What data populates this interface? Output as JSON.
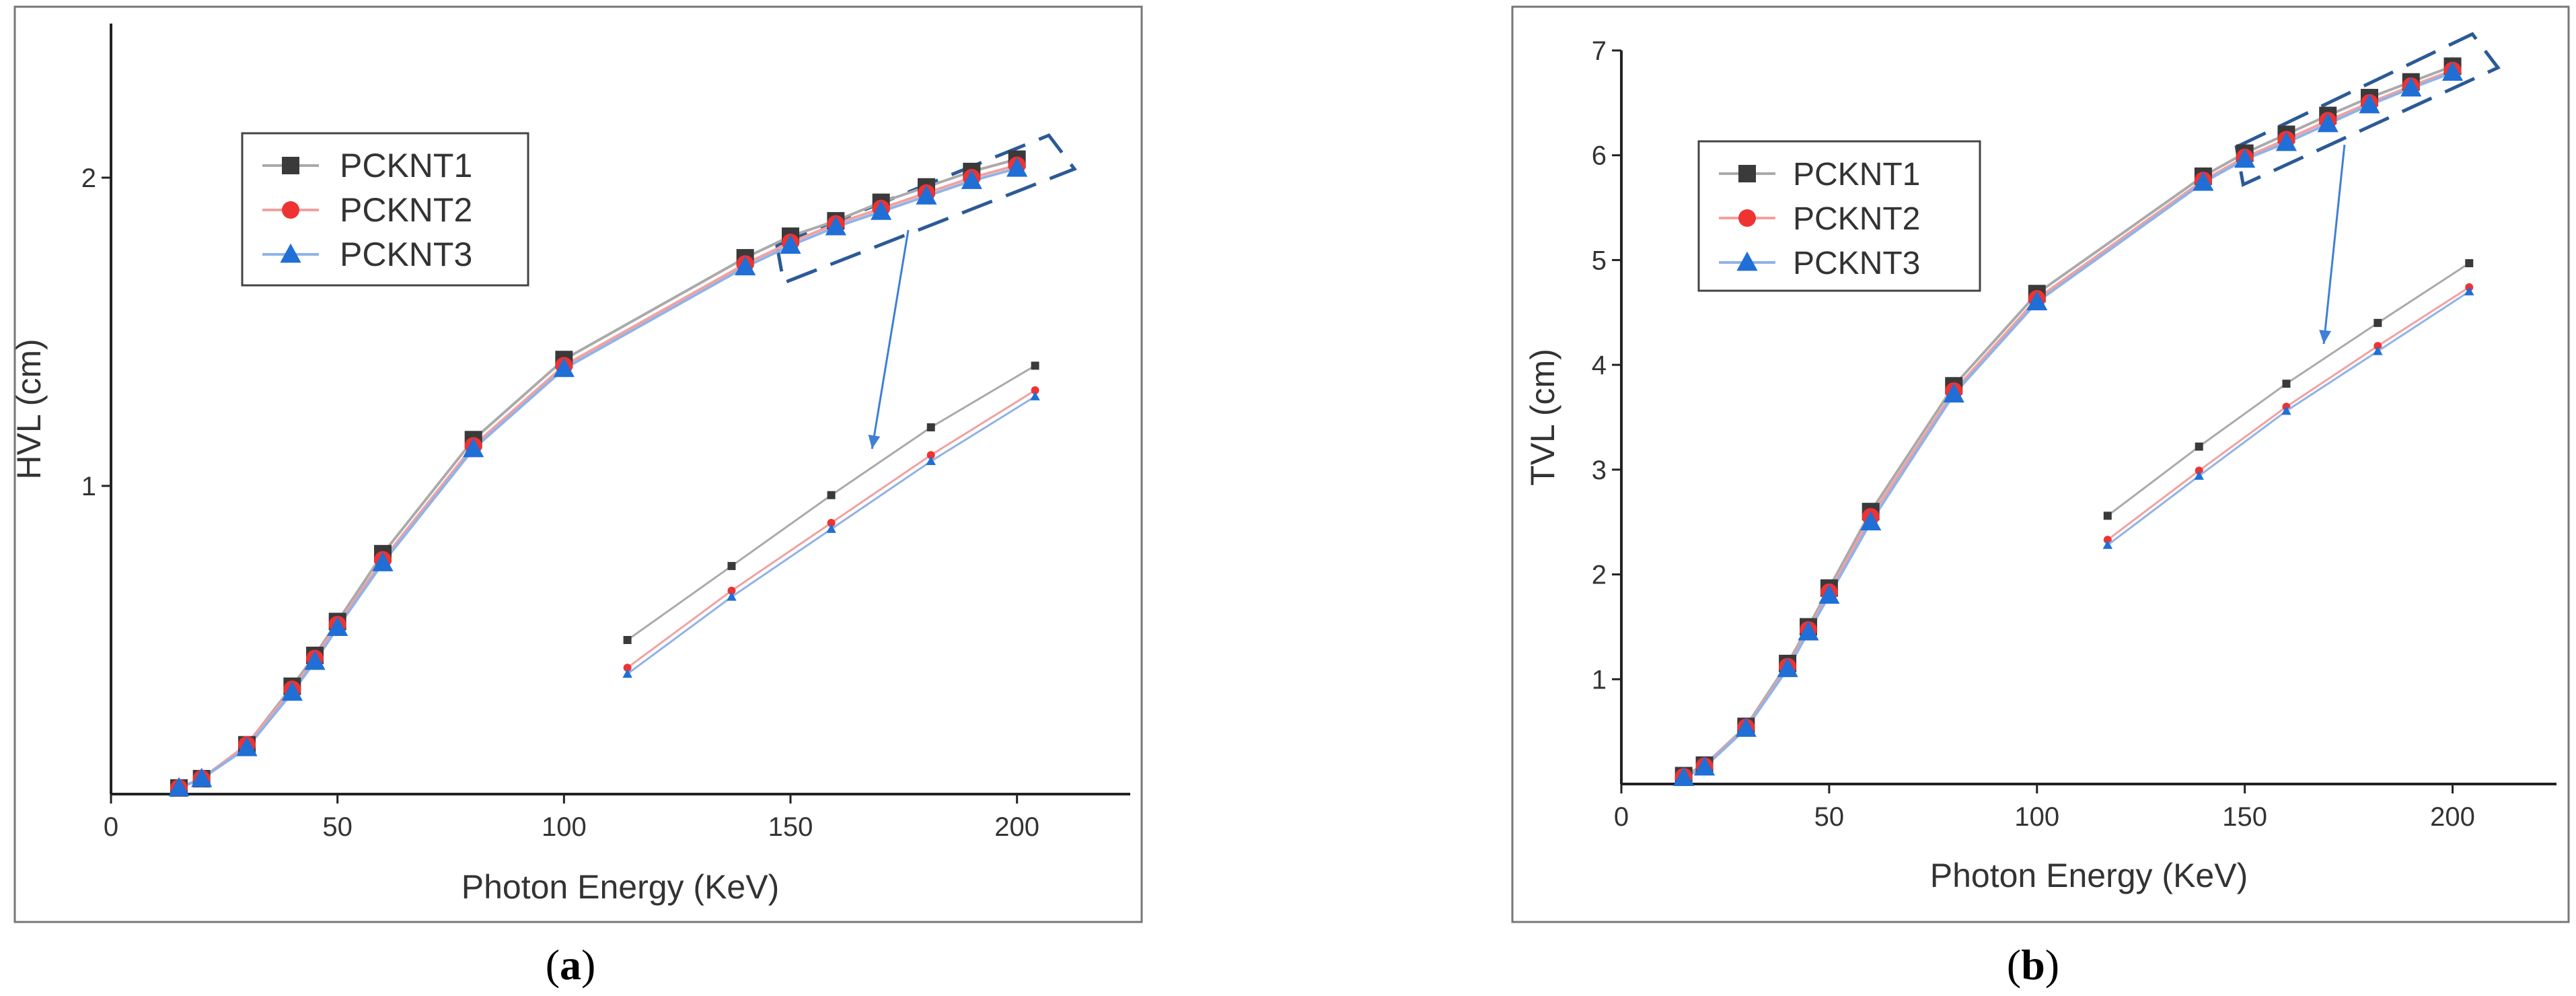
{
  "series_styles": [
    {
      "name": "PCKNT1",
      "line_color": "#aaaaaa",
      "marker_color": "#3a3a3a",
      "marker": "square"
    },
    {
      "name": "PCKNT2",
      "line_color": "#f2a0a0",
      "marker_color": "#ee3333",
      "marker": "circle"
    },
    {
      "name": "PCKNT3",
      "line_color": "#8fb3e8",
      "marker_color": "#1f6fd6",
      "marker": "triangle"
    }
  ],
  "chart_data": [
    {
      "id": "a",
      "type": "line",
      "caption_open": "(",
      "caption_letter": "a",
      "caption_close": ")",
      "xlabel": "Photon Energy (KeV)",
      "ylabel": "HVL (cm)",
      "xlim": [
        0,
        225
      ],
      "ylim": [
        0,
        2.5
      ],
      "xticks": [
        0,
        50,
        100,
        150,
        200
      ],
      "yticks": [
        1,
        2
      ],
      "x": [
        15,
        20,
        30,
        40,
        45,
        50,
        60,
        80,
        100,
        140,
        150,
        160,
        170,
        180,
        190,
        200
      ],
      "series": [
        {
          "name": "PCKNT1",
          "values": [
            0.02,
            0.05,
            0.16,
            0.35,
            0.45,
            0.56,
            0.78,
            1.15,
            1.41,
            1.74,
            1.81,
            1.86,
            1.92,
            1.97,
            2.02,
            2.06
          ]
        },
        {
          "name": "PCKNT2",
          "values": [
            0.02,
            0.05,
            0.16,
            0.34,
            0.44,
            0.55,
            0.76,
            1.13,
            1.39,
            1.72,
            1.79,
            1.85,
            1.9,
            1.95,
            2.0,
            2.04
          ]
        },
        {
          "name": "PCKNT3",
          "values": [
            0.02,
            0.05,
            0.15,
            0.33,
            0.43,
            0.54,
            0.75,
            1.12,
            1.38,
            1.71,
            1.78,
            1.84,
            1.89,
            1.94,
            1.99,
            2.03
          ]
        }
      ],
      "inset": {
        "x": [
          114,
          137,
          159,
          181,
          204
        ],
        "series": [
          {
            "name": "PCKNT1",
            "values": [
              0.5,
              0.74,
              0.97,
              1.19,
              1.39
            ]
          },
          {
            "name": "PCKNT2",
            "values": [
              0.41,
              0.66,
              0.88,
              1.1,
              1.31
            ]
          },
          {
            "name": "PCKNT3",
            "values": [
              0.39,
              0.64,
              0.86,
              1.08,
              1.29
            ]
          }
        ]
      },
      "highlight": {
        "x_from": 147,
        "x_to": 210,
        "y_from": 1.72,
        "y_to": 2.05
      },
      "arrow": {
        "from": [
          176,
          1.83
        ],
        "to": [
          168,
          1.12
        ]
      },
      "legend": {
        "position": "upper-left"
      }
    },
    {
      "id": "b",
      "type": "line",
      "caption_open": "(",
      "caption_letter": "b",
      "caption_close": ")",
      "xlabel": "Photon Energy (KeV)",
      "ylabel": "TVL (cm)",
      "xlim": [
        0,
        225
      ],
      "ylim": [
        0,
        7
      ],
      "xticks": [
        0,
        50,
        100,
        150,
        200
      ],
      "yticks": [
        1,
        2,
        3,
        4,
        5,
        6,
        7
      ],
      "x": [
        15,
        20,
        30,
        40,
        45,
        50,
        60,
        80,
        100,
        140,
        150,
        160,
        170,
        180,
        190,
        200
      ],
      "series": [
        {
          "name": "PCKNT1",
          "values": [
            0.08,
            0.18,
            0.55,
            1.15,
            1.5,
            1.87,
            2.6,
            3.8,
            4.68,
            5.8,
            6.02,
            6.2,
            6.38,
            6.55,
            6.7,
            6.85
          ]
        },
        {
          "name": "PCKNT2",
          "values": [
            0.07,
            0.17,
            0.54,
            1.12,
            1.47,
            1.83,
            2.55,
            3.75,
            4.63,
            5.76,
            5.98,
            6.15,
            6.33,
            6.5,
            6.66,
            6.81
          ]
        },
        {
          "name": "PCKNT3",
          "values": [
            0.06,
            0.16,
            0.53,
            1.1,
            1.45,
            1.8,
            2.5,
            3.72,
            4.6,
            5.74,
            5.96,
            6.12,
            6.3,
            6.48,
            6.64,
            6.79
          ]
        }
      ],
      "inset": {
        "x": [
          117,
          139,
          160,
          182,
          204
        ],
        "series": [
          {
            "name": "PCKNT1",
            "values": [
              2.56,
              3.22,
              3.82,
              4.4,
              4.97
            ]
          },
          {
            "name": "PCKNT2",
            "values": [
              2.33,
              2.99,
              3.6,
              4.18,
              4.74
            ]
          },
          {
            "name": "PCKNT3",
            "values": [
              2.28,
              2.94,
              3.56,
              4.13,
              4.7
            ]
          }
        ]
      },
      "highlight": {
        "x_from": 148,
        "x_to": 208,
        "y_from": 5.9,
        "y_to": 6.9
      },
      "arrow": {
        "from": [
          174,
          6.1
        ],
        "to": [
          169,
          4.2
        ]
      },
      "legend": {
        "position": "upper-left"
      }
    }
  ]
}
